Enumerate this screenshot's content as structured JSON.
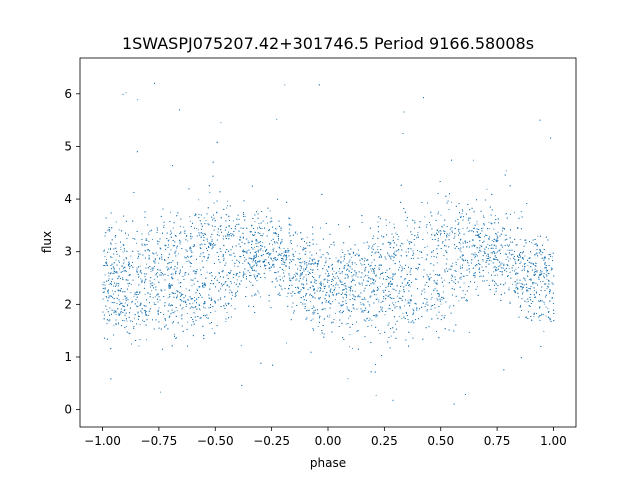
{
  "chart_data": {
    "type": "scatter",
    "title": "1SWASPJ075207.42+301746.5 Period 9166.58008s",
    "xlabel": "phase",
    "ylabel": "flux",
    "xlim": [
      -1.1,
      1.1
    ],
    "ylim": [
      -0.33,
      6.68
    ],
    "xticks": [
      -1.0,
      -0.75,
      -0.5,
      -0.25,
      0.0,
      0.25,
      0.5,
      0.75,
      1.0
    ],
    "xtick_labels": [
      "−1.00",
      "−0.75",
      "−0.50",
      "−0.25",
      "0.00",
      "0.25",
      "0.50",
      "0.75",
      "1.00"
    ],
    "yticks": [
      0,
      1,
      2,
      3,
      4,
      5,
      6
    ],
    "ytick_labels": [
      "0",
      "1",
      "2",
      "3",
      "4",
      "5",
      "6"
    ],
    "grid": false,
    "legend": "none",
    "marker_color": "#1f77b4",
    "phase_range": [
      -1.0,
      1.0
    ],
    "flux_clip": [
      0.0,
      6.35
    ],
    "model": {
      "description_points": [
        {
          "phase": -1.0,
          "upper_branch_flux": 2.7,
          "lower_branch_flux": 2.0
        },
        {
          "phase": -0.5,
          "upper_branch_flux": 3.3,
          "lower_branch_flux": 2.2
        },
        {
          "phase": -0.3,
          "upper_branch_flux": 3.3,
          "lower_branch_flux": 2.9
        },
        {
          "phase": 0.0,
          "upper_branch_flux": 2.5,
          "lower_branch_flux": 2.0
        },
        {
          "phase": 0.5,
          "upper_branch_flux": 3.3,
          "lower_branch_flux": 2.2
        },
        {
          "phase": 0.7,
          "upper_branch_flux": 3.3,
          "lower_branch_flux": 2.9
        },
        {
          "phase": 1.0,
          "upper_branch_flux": 2.5,
          "lower_branch_flux": 2.0
        }
      ]
    }
  }
}
